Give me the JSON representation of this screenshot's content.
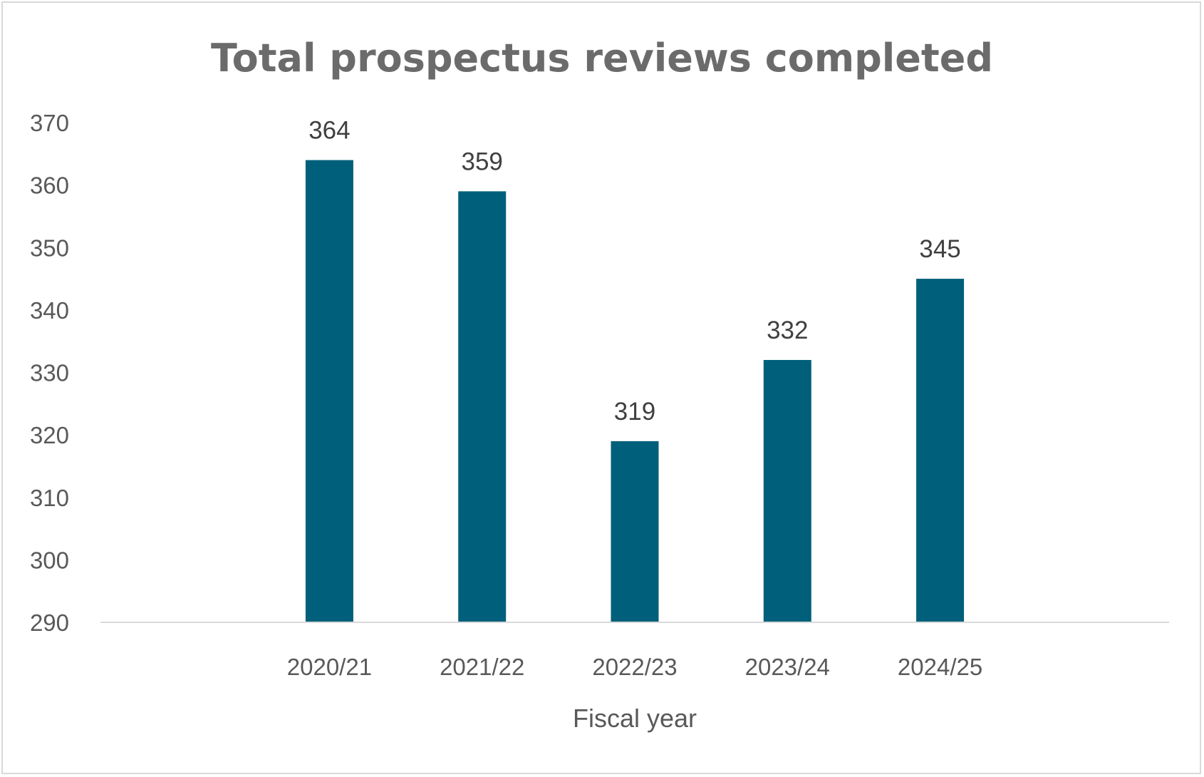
{
  "chart_data": {
    "type": "bar",
    "title": "Total prospectus reviews completed",
    "xlabel": "Fiscal year",
    "ylabel": "",
    "categories": [
      "2020/21",
      "2021/22",
      "2022/23",
      "2023/24",
      "2024/25"
    ],
    "values": [
      364,
      359,
      319,
      332,
      345
    ],
    "ylim": [
      290,
      370
    ],
    "yticks": [
      290,
      300,
      310,
      320,
      330,
      340,
      350,
      360,
      370
    ],
    "grid": false,
    "legend": "none",
    "bar_color": "#005f7a"
  }
}
